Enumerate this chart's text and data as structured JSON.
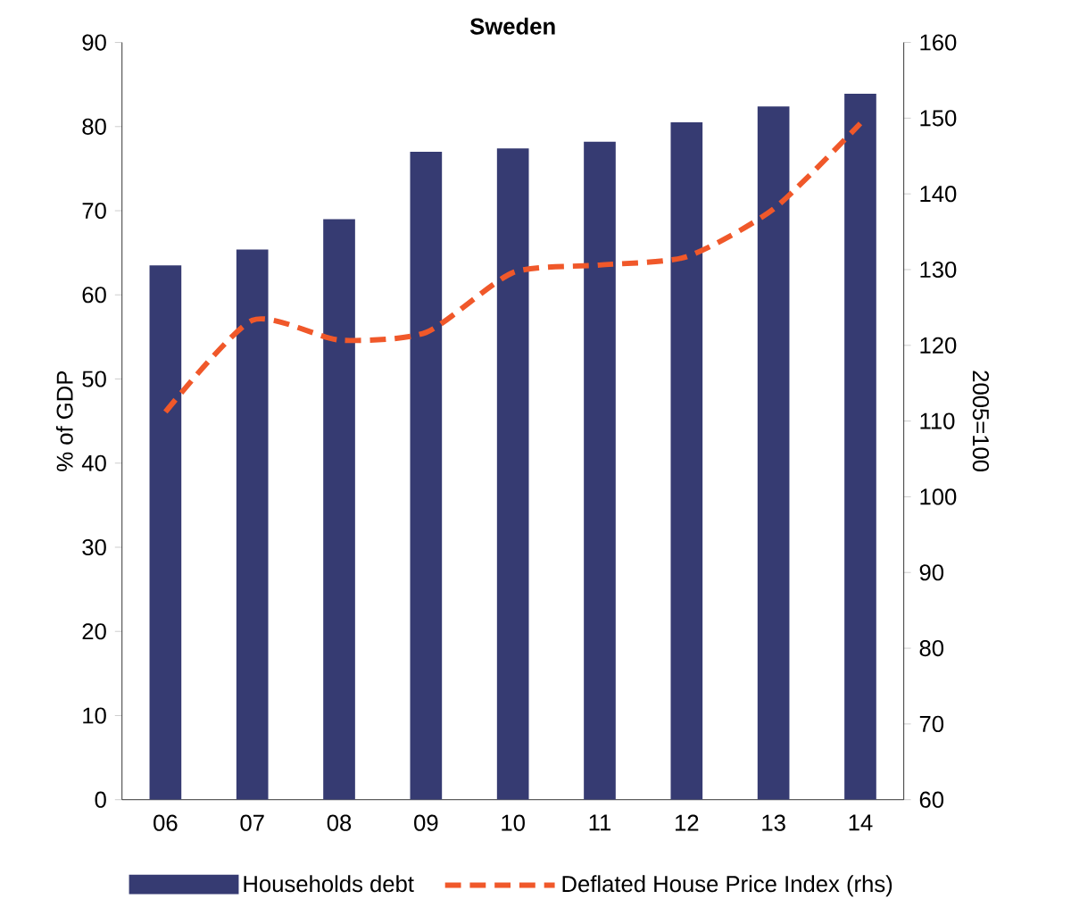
{
  "chart_data": {
    "type": "bar",
    "title": "Sweden",
    "categories": [
      "06",
      "07",
      "08",
      "09",
      "10",
      "11",
      "12",
      "13",
      "14"
    ],
    "series": [
      {
        "name": "Households debt",
        "color": "#363b72",
        "values": [
          63.5,
          65.4,
          69.0,
          77.0,
          77.4,
          78.2,
          80.5,
          82.4,
          83.9
        ]
      },
      {
        "name": "Deflated House Price Index (rhs)",
        "type": "line",
        "axis": "y2",
        "line_style": "dashed",
        "color": "#f0582a",
        "values": [
          111.2,
          123.3,
          120.7,
          121.7,
          129.6,
          130.6,
          131.7,
          138.0,
          149.3
        ]
      }
    ],
    "ylabel": "% of GDP",
    "y2label": "2005=100",
    "ylim": [
      0,
      90
    ],
    "yticks": [
      0,
      10,
      20,
      30,
      40,
      50,
      60,
      70,
      80,
      90
    ],
    "y2lim": [
      60,
      160
    ],
    "y2ticks": [
      60,
      70,
      80,
      90,
      100,
      110,
      120,
      130,
      140,
      150,
      160
    ],
    "legend": "bottom"
  }
}
